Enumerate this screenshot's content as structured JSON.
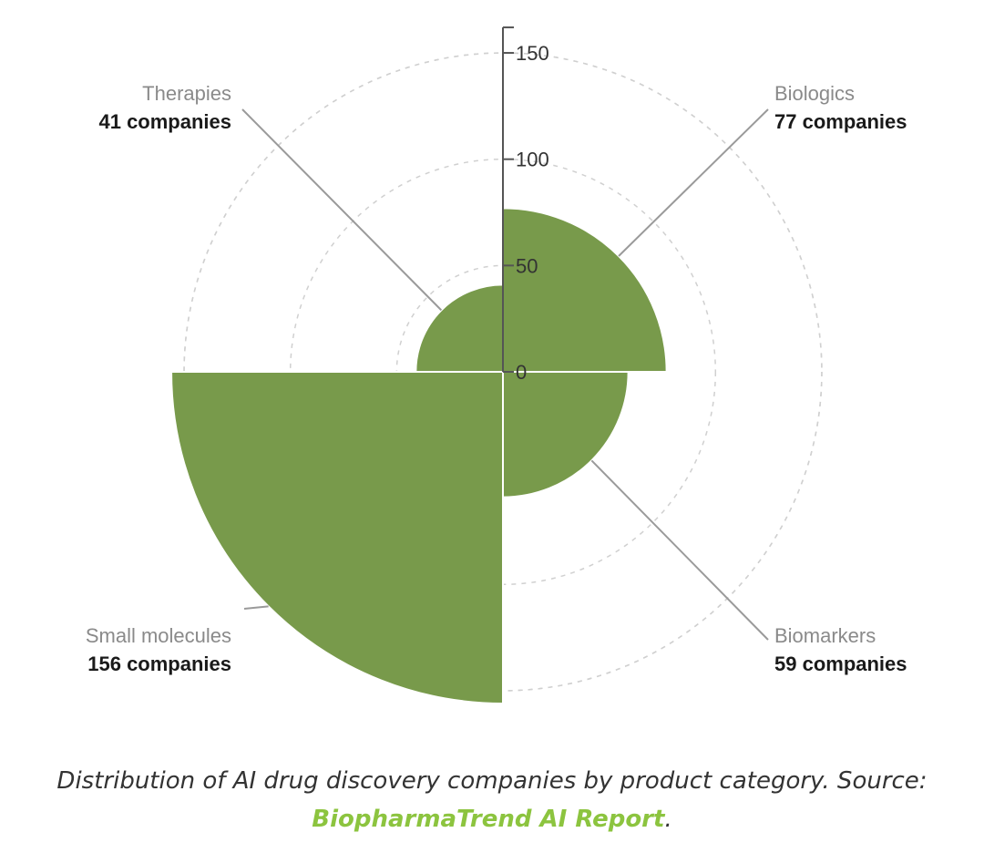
{
  "chart_data": {
    "type": "polar-bar",
    "categories": [
      "Biologics",
      "Biomarkers",
      "Small molecules",
      "Therapies"
    ],
    "values": [
      77,
      59,
      156,
      41
    ],
    "value_labels": [
      "77 companies",
      "59 companies",
      "156 companies",
      "41 companies"
    ],
    "radial_ticks": [
      0,
      50,
      100,
      150
    ],
    "rlim": [
      0,
      160
    ],
    "bar_color": "#789a4b",
    "grid": "dashed circles"
  },
  "caption": {
    "text": "Distribution of AI drug discovery companies by product category. Source: ",
    "link": "BiopharmaTrend AI Report",
    "end": "."
  }
}
